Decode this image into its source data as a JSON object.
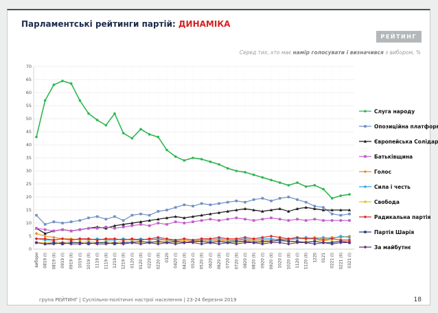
{
  "header": {
    "title_main": "Парламентські рейтинги партій:",
    "title_accent": "ДИНАМІКА",
    "logo": "РЕЙТИНГ"
  },
  "subtitle": {
    "pre": "Серед тих, хто має ",
    "bold": "намір голосувати і визначився",
    "post": " з вибором, %"
  },
  "footer": {
    "source": "група РЕЙТИНГ | Суспільно-політичні настрої населення | 23-24 березня 2019",
    "page": "18"
  },
  "chart_data": {
    "type": "line",
    "title": "Парламентські рейтинги партій: ДИНАМІКА",
    "xlabel": "",
    "ylabel": "",
    "ylim": [
      0,
      70
    ],
    "ytick_step": 5,
    "grid": true,
    "legend_position": "right",
    "categories": [
      "вибори",
      "0819 (I)",
      "0819 (II)",
      "0919 (I)",
      "0919 (II)",
      "1019 (I)",
      "1019 (II)",
      "1119 (I)",
      "1119 (II)",
      "1219 (I)",
      "1219 (II)",
      "0120 (I)",
      "0120 (II)",
      "0220 (I)",
      "0220 (II)",
      "0320",
      "0420 (I)",
      "0420 (II)",
      "0520 (I)",
      "0520 (II)",
      "0620 (I)",
      "0620 (II)",
      "0720 (I)",
      "0720 (II)",
      "0820 (I)",
      "0820 (II)",
      "0920 (I)",
      "0920 (II)",
      "1020 (I)",
      "1020 (II)",
      "1120 (I)",
      "1120 (II)",
      "1220",
      "0121",
      "0221 (I)",
      "0221 (II)",
      "0321 (I)"
    ],
    "series": [
      {
        "name": "Слуга народу",
        "color": "#2eb550",
        "marker": "circle",
        "width": 1.6,
        "values": [
          43,
          57,
          63,
          64.5,
          63.5,
          57,
          52,
          49.5,
          47.5,
          52,
          44.5,
          42.5,
          46,
          44,
          43,
          38,
          35.5,
          34,
          35,
          34.5,
          33.5,
          32.5,
          31,
          30,
          29.5,
          28.5,
          27.5,
          26.5,
          25.5,
          24.5,
          25.5,
          24,
          24.5,
          23,
          19.5,
          20.5,
          21
        ]
      },
      {
        "name": "Опозиційна платформа",
        "color": "#6f8fc4",
        "marker": "square",
        "width": 1.2,
        "values": [
          13,
          9.5,
          10.5,
          10,
          10.5,
          11,
          12,
          12.5,
          11.5,
          12.5,
          11,
          13,
          13.5,
          13,
          14.5,
          15,
          16,
          17,
          16.5,
          17.5,
          17,
          17.5,
          18,
          18.5,
          18,
          19,
          19.5,
          18.5,
          19.5,
          20,
          19,
          18,
          16.5,
          16,
          13.5,
          13,
          13.5
        ]
      },
      {
        "name": "Європейська Солідарність",
        "color": "#1a1a1a",
        "marker": "triangle",
        "width": 1.2,
        "values": [
          8,
          6,
          7,
          7.5,
          7,
          7.5,
          8,
          8.5,
          8,
          9,
          9.5,
          10,
          10.5,
          11,
          11.5,
          12,
          12.5,
          12,
          12.5,
          13,
          13.5,
          14,
          14.5,
          15,
          15.5,
          15,
          14.5,
          15,
          15.5,
          14.5,
          15.5,
          16,
          15.5,
          15,
          15,
          15,
          15
        ]
      },
      {
        "name": "Батьківщина",
        "color": "#c05bc9",
        "marker": "square",
        "width": 1.1,
        "values": [
          8,
          7.5,
          7,
          7.5,
          7,
          7.5,
          8,
          8,
          8.5,
          8,
          8.5,
          9,
          9.5,
          9,
          10,
          9.5,
          10.5,
          10,
          10.5,
          11,
          11.5,
          11,
          11.5,
          12,
          11.5,
          11,
          11.5,
          12,
          11.5,
          11,
          11.5,
          11,
          11.5,
          11,
          11,
          11,
          11
        ]
      },
      {
        "name": "Голос",
        "color": "#f08a1d",
        "marker": "circle",
        "width": 1.1,
        "values": [
          6,
          5,
          4.5,
          4,
          4,
          3.5,
          4,
          3.5,
          4,
          3.5,
          4,
          3.5,
          3.5,
          4,
          3.5,
          3.5,
          3,
          3.5,
          3,
          3.5,
          3,
          3.5,
          3,
          3.5,
          3.5,
          3,
          3.5,
          3.5,
          4,
          3.5,
          4,
          4,
          4.5,
          4,
          4.5,
          4.5,
          5
        ]
      },
      {
        "name": "Сила і честь",
        "color": "#2ba7dd",
        "marker": "circle",
        "width": 1.1,
        "values": [
          4,
          3.5,
          3.5,
          4,
          3.5,
          4,
          3.5,
          4,
          3.5,
          3.5,
          4,
          3.5,
          4,
          3.5,
          4,
          3.5,
          3.5,
          4,
          3.5,
          4,
          3.5,
          4,
          3.5,
          3.5,
          4,
          3.5,
          4,
          4,
          3.5,
          4,
          4,
          4.5,
          4,
          4.5,
          4,
          5,
          4.5
        ]
      },
      {
        "name": "Свобода",
        "color": "#e8c11c",
        "marker": "circle",
        "width": 1.1,
        "values": [
          2.5,
          2.5,
          3,
          2.5,
          3,
          2.5,
          3,
          2.5,
          3,
          2.5,
          3,
          3,
          2.5,
          3,
          2.5,
          3,
          2.5,
          3,
          2.5,
          3,
          2.5,
          3,
          3,
          2.5,
          3,
          3,
          2.5,
          3,
          3,
          3,
          2.5,
          3,
          3,
          3.5,
          3,
          3,
          3
        ]
      },
      {
        "name": "Радикальна партія",
        "color": "#e02424",
        "marker": "circle",
        "width": 1.1,
        "values": [
          4,
          4,
          3.5,
          4,
          3.5,
          4,
          4,
          3.5,
          4,
          4,
          3.5,
          4,
          3.5,
          4,
          4.5,
          4,
          3.5,
          4,
          3.5,
          4,
          4,
          4.5,
          4,
          4,
          4.5,
          4,
          4.5,
          5,
          4.5,
          4,
          4.5,
          4,
          4,
          3.5,
          4,
          3.5,
          3.5
        ]
      },
      {
        "name": "Партія Шарія",
        "color": "#26427a",
        "marker": "square",
        "width": 1.1,
        "values": [
          2.5,
          2,
          2.5,
          2,
          2.5,
          2.5,
          2,
          2.5,
          2.5,
          2,
          2.5,
          2.5,
          3,
          2.5,
          3,
          2.5,
          3,
          2.5,
          3,
          3,
          2.5,
          3,
          2.5,
          3,
          3,
          2.5,
          3,
          3,
          3.5,
          3,
          3,
          2.5,
          3,
          2.5,
          2.5,
          3,
          2.5
        ]
      },
      {
        "name": "За майбутнє",
        "color": "#5f2d7f",
        "marker": "diamond",
        "width": 1.1,
        "values": [
          2.5,
          2,
          2,
          2.5,
          2,
          2,
          2.5,
          2,
          2,
          2.5,
          2,
          2.5,
          2,
          2.5,
          2,
          2.5,
          2,
          2.5,
          2.5,
          2,
          2.5,
          2,
          2.5,
          2,
          2.5,
          2.5,
          2,
          2.5,
          2.5,
          2,
          2.5,
          2.5,
          2,
          2.5,
          2,
          2.5,
          2.5
        ]
      }
    ]
  }
}
